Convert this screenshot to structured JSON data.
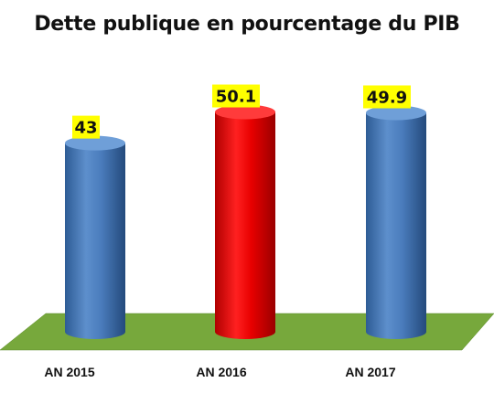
{
  "chart_data": {
    "type": "bar",
    "title": "Dette publique en pourcentage du PIB",
    "categories": [
      "AN 2015",
      "AN 2016",
      "AN 2017"
    ],
    "values": [
      43,
      50.1,
      49.9
    ],
    "value_labels": [
      "43",
      "50.1",
      "49.9"
    ],
    "bar_colors": [
      "#4f81bd",
      "#e60000",
      "#4f81bd"
    ],
    "floor_color": "#77a83c",
    "label_background": "#ffff00",
    "ylim": [
      0,
      60
    ],
    "legend": "none",
    "grid": false
  }
}
